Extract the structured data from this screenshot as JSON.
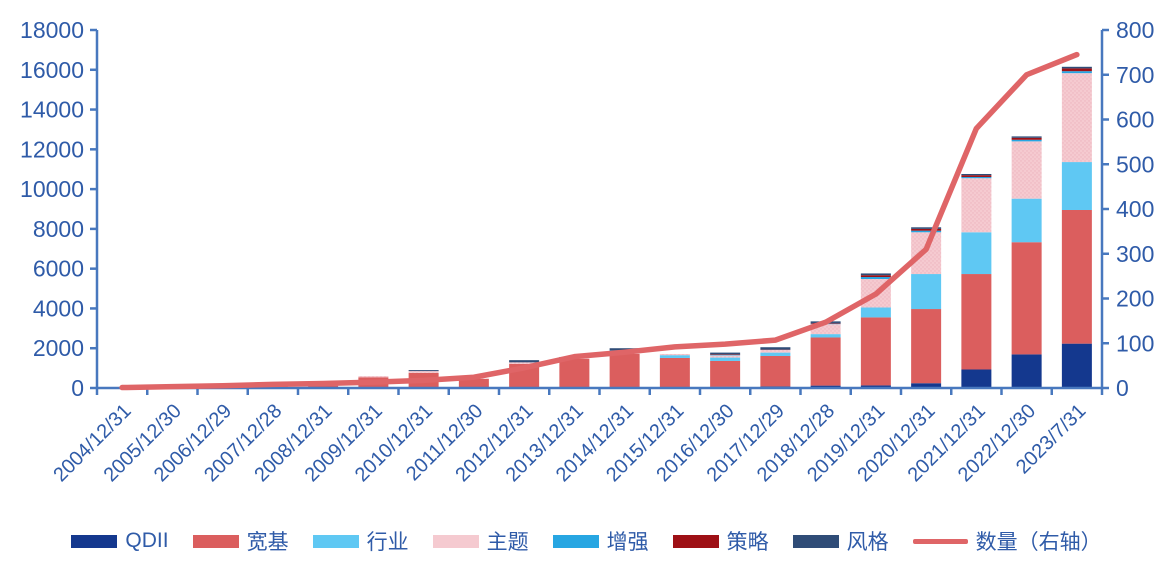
{
  "chart_data": {
    "type": "combo-stacked-bar-line",
    "title": "",
    "xlabel": "",
    "ylabel_left": "",
    "ylabel_right": "",
    "grid": false,
    "legend_position": "bottom",
    "categories": [
      "2004/12/31",
      "2005/12/30",
      "2006/12/29",
      "2007/12/28",
      "2008/12/31",
      "2009/12/31",
      "2010/12/31",
      "2011/12/30",
      "2012/12/31",
      "2013/12/31",
      "2014/12/31",
      "2015/12/31",
      "2016/12/30",
      "2017/12/29",
      "2018/12/28",
      "2019/12/31",
      "2020/12/31",
      "2021/12/31",
      "2022/12/30",
      "2023/7/31"
    ],
    "bar_series": [
      {
        "name": "QDII",
        "color": "#14388E",
        "pattern": false,
        "values": [
          0,
          0,
          0,
          0,
          0,
          0,
          0,
          0,
          0,
          30,
          30,
          30,
          60,
          80,
          120,
          130,
          240,
          930,
          1690,
          2230
        ]
      },
      {
        "name": "宽基",
        "color": "#DB5E5E",
        "pattern": false,
        "values": [
          50,
          60,
          130,
          190,
          130,
          540,
          760,
          470,
          1210,
          1440,
          1680,
          1480,
          1300,
          1530,
          2420,
          3420,
          3730,
          4800,
          5640,
          6720
        ]
      },
      {
        "name": "行业",
        "color": "#5FC8F3",
        "pattern": false,
        "values": [
          0,
          0,
          0,
          0,
          0,
          0,
          0,
          0,
          0,
          0,
          0,
          140,
          170,
          170,
          170,
          500,
          1760,
          2100,
          2190,
          2410
        ]
      },
      {
        "name": "主题",
        "color": "#F5CAD0",
        "pattern": true,
        "values": [
          0,
          0,
          0,
          10,
          10,
          60,
          90,
          10,
          80,
          60,
          80,
          60,
          110,
          130,
          500,
          1430,
          2100,
          2720,
          2880,
          4470
        ]
      },
      {
        "name": "增强",
        "color": "#27A6E2",
        "pattern": false,
        "values": [
          0,
          0,
          0,
          0,
          0,
          0,
          0,
          0,
          0,
          0,
          100,
          0,
          30,
          30,
          30,
          100,
          80,
          60,
          80,
          100
        ]
      },
      {
        "name": "策略",
        "color": "#9E1015",
        "pattern": false,
        "values": [
          0,
          0,
          0,
          0,
          0,
          0,
          0,
          0,
          0,
          0,
          0,
          0,
          20,
          20,
          30,
          90,
          90,
          90,
          100,
          140
        ]
      },
      {
        "name": "风格",
        "color": "#2F4C77",
        "pattern": false,
        "values": [
          0,
          0,
          0,
          0,
          0,
          0,
          50,
          0,
          110,
          30,
          110,
          0,
          90,
          90,
          80,
          90,
          80,
          60,
          70,
          80
        ]
      }
    ],
    "line_series": {
      "name": "数量（右轴）",
      "color": "#DF6567",
      "axis": "right",
      "values": [
        1,
        3,
        5,
        8,
        10,
        13,
        17,
        24,
        45,
        70,
        80,
        92,
        98,
        107,
        147,
        210,
        310,
        580,
        700,
        745
      ]
    },
    "left_axis": {
      "min": 0,
      "max": 18000,
      "step": 2000,
      "tick_labels": [
        "0",
        "2000",
        "4000",
        "6000",
        "8000",
        "10000",
        "12000",
        "14000",
        "16000",
        "18000"
      ]
    },
    "right_axis": {
      "min": 0,
      "max": 800,
      "step": 100,
      "tick_labels": [
        "0",
        "100",
        "200",
        "300",
        "400",
        "500",
        "600",
        "700",
        "800"
      ]
    },
    "colors": {
      "axis_text": "#2F5BA8",
      "axis_line": "#4878BE",
      "background": "#FFFFFF"
    }
  }
}
